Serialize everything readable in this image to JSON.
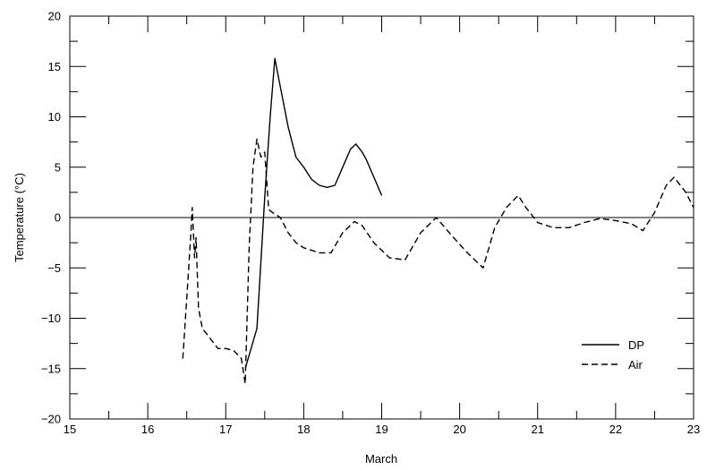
{
  "chart_data": {
    "type": "line",
    "xlabel": "March",
    "ylabel": "Temperature (°C)",
    "xlim": [
      15,
      23
    ],
    "ylim": [
      -20,
      20
    ],
    "x_ticks": [
      "15",
      "16",
      "17",
      "18",
      "19",
      "20",
      "21",
      "22",
      "23"
    ],
    "y_ticks": [
      "20",
      "15",
      "10",
      "5",
      "0",
      "−5",
      "−10",
      "−15",
      "−20"
    ],
    "legend_position": "bottom-right",
    "zero_line": true,
    "series": [
      {
        "name": "DP",
        "style": "solid",
        "x": [
          17.25,
          17.4,
          17.5,
          17.57,
          17.63,
          17.7,
          17.75,
          17.8,
          17.85,
          17.9,
          18.0,
          18.1,
          18.2,
          18.3,
          18.4,
          18.5,
          18.6,
          18.67,
          18.75,
          18.8,
          18.9,
          19.0
        ],
        "y": [
          -15,
          -11,
          2,
          10,
          15.8,
          13,
          11,
          9,
          7.5,
          6,
          5,
          3.8,
          3.2,
          3.0,
          3.2,
          5,
          6.8,
          7.3,
          6.5,
          5.8,
          4,
          2.2
        ]
      },
      {
        "name": "Air",
        "style": "dashed",
        "x": [
          16.45,
          16.5,
          16.55,
          16.57,
          16.6,
          16.62,
          16.65,
          16.7,
          16.8,
          16.9,
          17.0,
          17.1,
          17.2,
          17.25,
          17.3,
          17.35,
          17.4,
          17.45,
          17.5,
          17.55,
          17.6,
          17.7,
          17.8,
          17.9,
          18.0,
          18.2,
          18.35,
          18.5,
          18.65,
          18.75,
          18.9,
          19.1,
          19.3,
          19.5,
          19.7,
          19.9,
          20.1,
          20.3,
          20.45,
          20.6,
          20.75,
          20.85,
          21.0,
          21.2,
          21.4,
          21.6,
          21.8,
          22.0,
          22.2,
          22.35,
          22.5,
          22.65,
          22.75,
          22.9,
          23.0
        ],
        "y": [
          -14,
          -8,
          -2,
          1,
          -4,
          -2,
          -9,
          -11,
          -12,
          -13,
          -13,
          -13.2,
          -14,
          -16.5,
          -3,
          5,
          7.8,
          6,
          6.5,
          0.8,
          0.5,
          0,
          -1.5,
          -2.5,
          -3,
          -3.5,
          -3.5,
          -1.5,
          -0.4,
          -0.8,
          -2.5,
          -4,
          -4.2,
          -1.5,
          0,
          -1.8,
          -3.5,
          -5,
          -1,
          1,
          2.2,
          1,
          -0.5,
          -1,
          -1,
          -0.5,
          -0.1,
          -0.3,
          -0.6,
          -1.3,
          0.5,
          3.2,
          4,
          2.5,
          1
        ]
      }
    ]
  }
}
